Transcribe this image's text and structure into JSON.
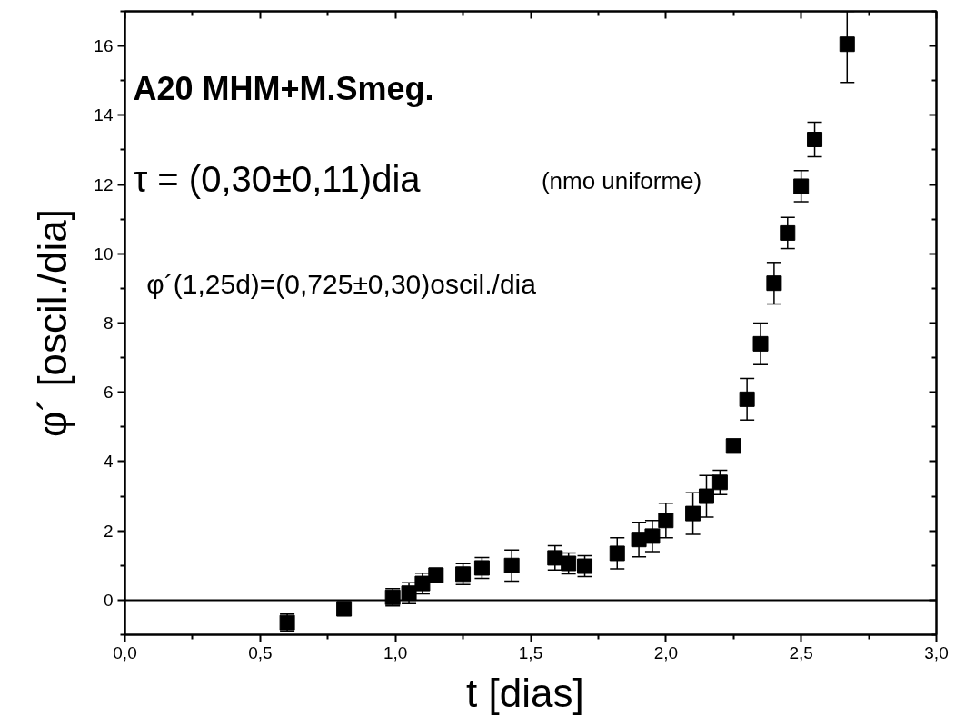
{
  "chart_data": {
    "type": "scatter",
    "xlabel": "t  [dias]",
    "ylabel": "φ´ [oscil./dia]",
    "x": [
      0.6,
      0.81,
      0.99,
      1.05,
      1.1,
      1.15,
      1.25,
      1.32,
      1.43,
      1.59,
      1.64,
      1.7,
      1.82,
      1.9,
      1.95,
      2.0,
      2.1,
      2.15,
      2.2,
      2.25,
      2.3,
      2.35,
      2.4,
      2.45,
      2.5,
      2.55,
      2.67
    ],
    "values": [
      -0.65,
      -0.25,
      0.08,
      0.2,
      0.48,
      0.72,
      0.75,
      0.93,
      1.0,
      1.22,
      1.06,
      0.98,
      1.35,
      1.75,
      1.85,
      2.3,
      2.5,
      3.0,
      3.4,
      4.45,
      5.8,
      7.4,
      9.15,
      10.6,
      11.95,
      13.3,
      16.05
    ],
    "errors": [
      0.25,
      0.2,
      0.25,
      0.3,
      0.3,
      0.2,
      0.3,
      0.3,
      0.45,
      0.35,
      0.3,
      0.3,
      0.45,
      0.5,
      0.45,
      0.5,
      0.6,
      0.6,
      0.35,
      0.2,
      0.6,
      0.6,
      0.6,
      0.45,
      0.45,
      0.5,
      [
        14.95,
        17
      ]
    ],
    "color": "#000000",
    "marker": "square",
    "xlim": [
      0,
      3
    ],
    "ylim": [
      -1,
      17
    ],
    "xticks": [
      {
        "value": 0,
        "label": "0,0"
      },
      {
        "value": 0.25,
        "label": null
      },
      {
        "value": 0.5,
        "label": "0,5"
      },
      {
        "value": 0.75,
        "label": null
      },
      {
        "value": 1,
        "label": "1,0"
      },
      {
        "value": 1.25,
        "label": null
      },
      {
        "value": 1.5,
        "label": "1,5"
      },
      {
        "value": 1.75,
        "label": null
      },
      {
        "value": 2,
        "label": "2,0"
      },
      {
        "value": 2.25,
        "label": null
      },
      {
        "value": 2.5,
        "label": "2,5"
      },
      {
        "value": 2.75,
        "label": null
      },
      {
        "value": 3,
        "label": "3,0"
      }
    ],
    "yticks": [
      {
        "value": -1,
        "label": null
      },
      0,
      {
        "value": 1,
        "label": null
      },
      2,
      {
        "value": 3,
        "label": null
      },
      4,
      {
        "value": 5,
        "label": null
      },
      6,
      {
        "value": 7,
        "label": null
      },
      8,
      {
        "value": 9,
        "label": null
      },
      10,
      {
        "value": 11,
        "label": null
      },
      12,
      {
        "value": 13,
        "label": null
      },
      14,
      {
        "value": 15,
        "label": null
      },
      16,
      {
        "value": 17,
        "label": null
      }
    ],
    "ref_lines": [
      {
        "axis": "y",
        "value": 0,
        "color": "#000000",
        "line_style": "solid"
      }
    ],
    "annotations": [
      "A20  MHM+M.Smeg.",
      "τ = (0,30±0,11)dia",
      "(nmo uniforme)",
      "φ´(1,25d)=(0,725±0,30)oscil./dia"
    ],
    "grid": false
  }
}
